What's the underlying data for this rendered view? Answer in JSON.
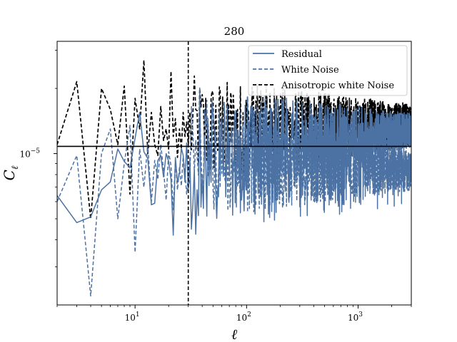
{
  "chart_data": {
    "type": "line",
    "title": "280",
    "xlabel": "ℓ",
    "ylabel_base": "C",
    "ylabel_sub": "ℓ",
    "xscale": "log",
    "yscale": "log",
    "xlim": [
      2,
      3000
    ],
    "ylim": [
      2e-06,
      3.3e-05
    ],
    "x_ticks": [
      {
        "value": 10,
        "base": "10",
        "exp": "1"
      },
      {
        "value": 100,
        "base": "10",
        "exp": "2"
      },
      {
        "value": 1000,
        "base": "10",
        "exp": "3"
      }
    ],
    "y_ticks": [
      {
        "value": 1e-05,
        "base": "10",
        "exp": "−5"
      }
    ],
    "hline": {
      "value": 1.08e-05,
      "color": "#000000"
    },
    "vline": {
      "value": 30,
      "color": "#000000",
      "style": "dashed"
    },
    "legend_position": "top-right",
    "series": [
      {
        "name": "Residual",
        "style": "solid",
        "color": "#4c72a4",
        "x": [
          2,
          3,
          4,
          5,
          6,
          7,
          8,
          9,
          10,
          11,
          12,
          13,
          14,
          15,
          16,
          17,
          18,
          19,
          20,
          21,
          22,
          23,
          24,
          25,
          26,
          27,
          28,
          29,
          30
        ],
        "y": [
          6.4e-06,
          4.8e-06,
          5.1e-06,
          6.8e-06,
          7.4e-06,
          1.05e-05,
          9.2e-06,
          8.6e-06,
          1.18e-05,
          1.55e-05,
          1.02e-05,
          9.5e-06,
          5.8e-06,
          5.9e-06,
          9.3e-06,
          9.8e-06,
          7.8e-06,
          1e-05,
          9.2e-06,
          7.6e-06,
          4.2e-06,
          9.6e-06,
          7.4e-06,
          8.1e-06,
          1.06e-05,
          9.8e-06,
          7.4e-06,
          1.12e-05,
          6.8e-06
        ],
        "trend_end": 1.28e-05,
        "band_high": 1.35e-05,
        "band_low": 9.5e-06
      },
      {
        "name": "White Noise",
        "style": "dashed",
        "color": "#4c72a4",
        "x": [
          2,
          3,
          4,
          5,
          6,
          7,
          8,
          9,
          10,
          11,
          12,
          13,
          14,
          15,
          16,
          17,
          18,
          19,
          20,
          21,
          22,
          23,
          24,
          25,
          26,
          27,
          28,
          29,
          30
        ],
        "y": [
          6e-06,
          9.8e-06,
          2.2e-06,
          1e-05,
          1.3e-05,
          5e-06,
          9e-06,
          1.35e-05,
          3.5e-06,
          1.05e-05,
          7e-06,
          1.1e-05,
          6e-06,
          9.3e-06,
          7.6e-06,
          1.1e-05,
          8.4e-06,
          6.1e-06,
          1.02e-05,
          8.8e-06,
          5.5e-06,
          9.4e-06,
          6.8e-06,
          8.6e-06,
          7.1e-06,
          9.7e-06,
          8.2e-06,
          6.5e-06,
          7.8e-06
        ],
        "tail_level": 8.3e-06,
        "band_high": 9.8e-06,
        "band_low": 6.5e-06
      },
      {
        "name": "Anisotropic white Noise",
        "style": "dashed",
        "color": "#000000",
        "x": [
          2,
          3,
          4,
          5,
          6,
          7,
          8,
          9,
          10,
          11,
          12,
          13,
          14,
          15,
          16,
          17,
          18,
          19,
          20,
          21,
          22,
          23,
          24,
          25,
          26,
          27,
          28,
          29,
          30
        ],
        "y": [
          1.1e-05,
          2.15e-05,
          5e-06,
          2e-05,
          1.6e-05,
          1.1e-05,
          2.05e-05,
          6.5e-06,
          1.8e-05,
          1.3e-05,
          2.7e-05,
          1e-05,
          1.55e-05,
          1.1e-05,
          9.8e-06,
          1.65e-05,
          1.15e-05,
          1.3e-05,
          1.05e-05,
          2.4e-05,
          1.2e-05,
          1.45e-05,
          9.6e-06,
          1.3e-05,
          1.05e-05,
          1.55e-05,
          1.2e-05,
          1.4e-05,
          1.1e-05
        ],
        "tail_level": 1.35e-05,
        "band_high": 1.72e-05,
        "band_low": 1.18e-05
      }
    ]
  }
}
